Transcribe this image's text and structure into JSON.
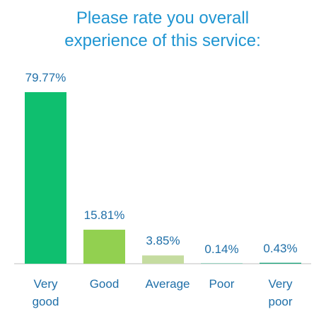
{
  "chart_data": {
    "type": "bar",
    "title": "Please rate you overall experience of this service:",
    "categories": [
      "Very good",
      "Good",
      "Average",
      "Poor",
      "Very poor"
    ],
    "values": [
      79.77,
      15.81,
      3.85,
      0.14,
      0.43
    ],
    "value_labels": [
      "79.77%",
      "15.81%",
      "3.85%",
      "0.14%",
      "0.43%"
    ],
    "colors": [
      "#0fbf6f",
      "#92d050",
      "#c5dca0",
      "#1aa37a",
      "#1aa37a"
    ]
  }
}
